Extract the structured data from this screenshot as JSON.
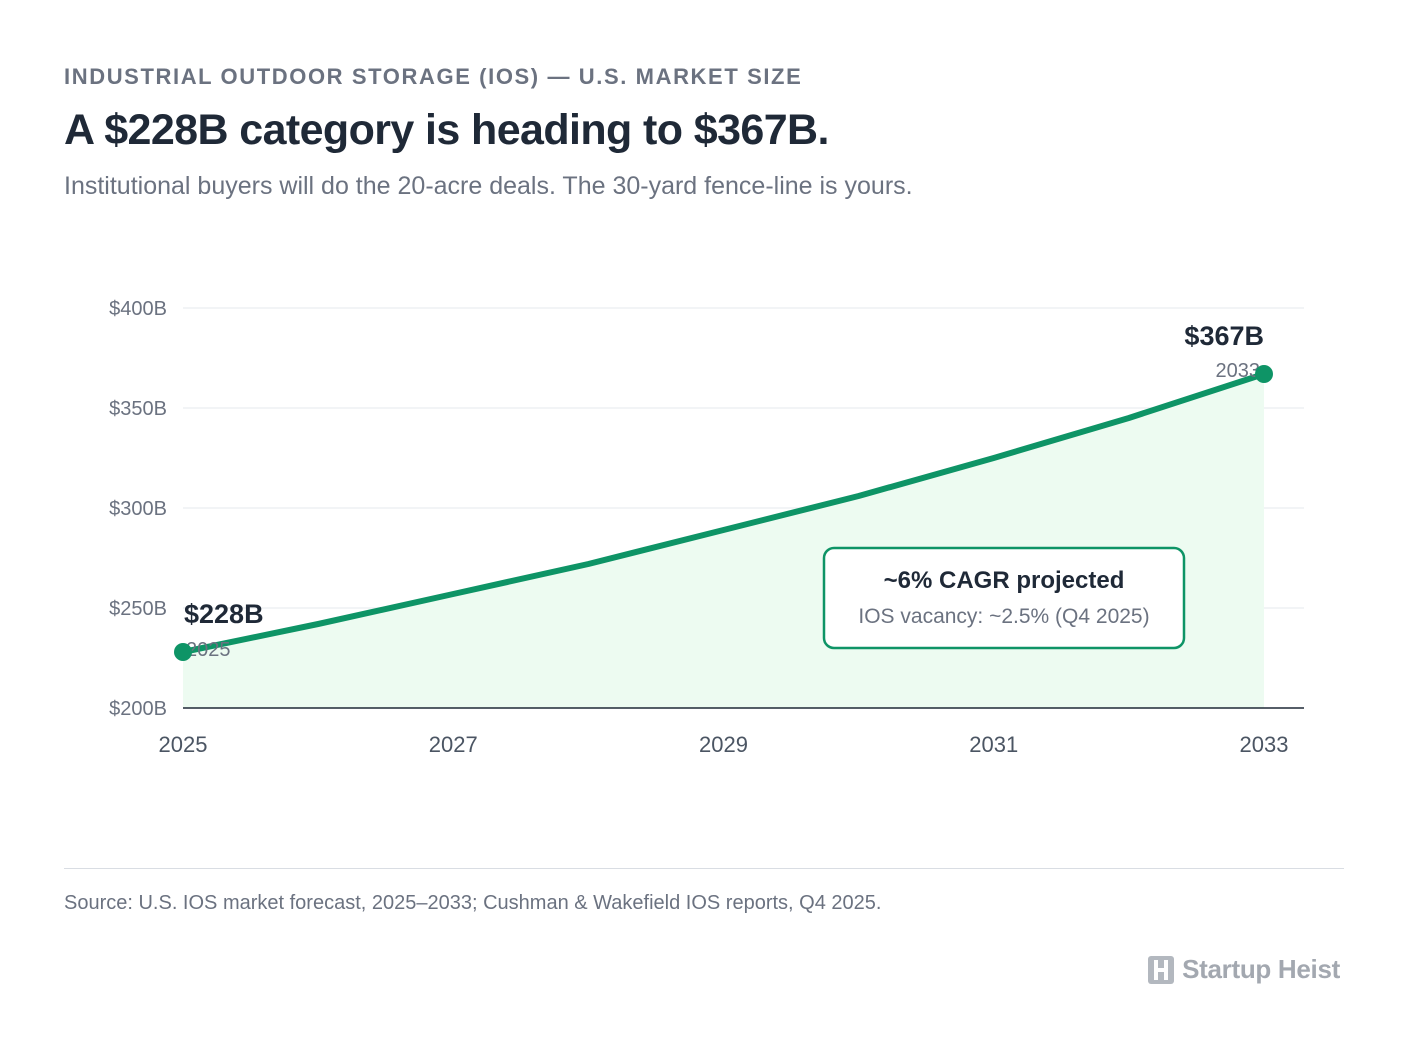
{
  "header": {
    "eyebrow": "INDUSTRIAL OUTDOOR STORAGE (IOS) — U.S. MARKET SIZE",
    "title": "A $228B category is heading to $367B.",
    "subtitle": "Institutional buyers will do the 20-acre deals. The 30-yard fence-line is yours."
  },
  "chart_data": {
    "type": "area",
    "x": [
      2025,
      2026,
      2027,
      2028,
      2029,
      2030,
      2031,
      2032,
      2033
    ],
    "series": [
      {
        "values": [
          228,
          242,
          257,
          272,
          289,
          306,
          325,
          345,
          367
        ],
        "color": "#0e9466",
        "fill": "#edfbf1"
      }
    ],
    "xticks": [
      2025,
      2027,
      2029,
      2031,
      2033
    ],
    "xtick_labels": [
      "2025",
      "2027",
      "2029",
      "2031",
      "2033"
    ],
    "yticks": [
      200,
      250,
      300,
      350,
      400
    ],
    "ytick_labels": [
      "$200B",
      "$250B",
      "$300B",
      "$350B",
      "$400B"
    ],
    "xlim": [
      2025,
      2033
    ],
    "ylim": [
      200,
      400
    ],
    "grid": true,
    "endpoint_labels": [
      {
        "x": 2025,
        "y": 228,
        "value": "$228B",
        "year": "2025"
      },
      {
        "x": 2033,
        "y": 367,
        "value": "$367B",
        "year": "2033"
      }
    ],
    "callout": {
      "title": "~6% CAGR projected",
      "text": "IOS vacancy: ~2.5% (Q4 2025)"
    }
  },
  "footer": {
    "source": "Source: U.S. IOS market forecast, 2025–2033; Cushman & Wakefield IOS reports, Q4 2025.",
    "brand": "Startup Heist"
  },
  "colors": {
    "accent": "#0e9466",
    "area_fill": "#edfbf1",
    "text_dark": "#1f2937",
    "text_muted": "#6b7280",
    "gridline": "#eef0f3"
  }
}
